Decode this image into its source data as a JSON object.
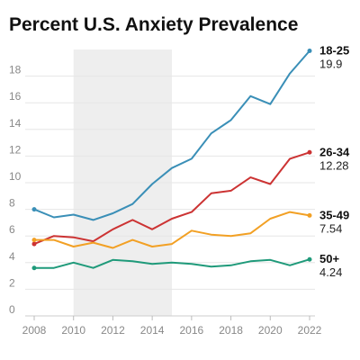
{
  "chart_data": {
    "type": "line",
    "title": "Percent U.S. Anxiety Prevalence",
    "xlabel": "",
    "ylabel": "",
    "xlim": [
      2008,
      2022
    ],
    "ylim": [
      0,
      20
    ],
    "x_ticks": [
      "2008",
      "2010",
      "2012",
      "2014",
      "2016",
      "2018",
      "2020",
      "2022"
    ],
    "y_ticks": [
      "0",
      "2",
      "4",
      "6",
      "8",
      "10",
      "12",
      "14",
      "16",
      "18"
    ],
    "grid": "horizontal",
    "legend": "end-labels-right",
    "shaded_range": [
      2010,
      2015
    ],
    "shade_color": "#eeeeee",
    "x": [
      2008,
      2009,
      2010,
      2011,
      2012,
      2013,
      2014,
      2015,
      2016,
      2017,
      2018,
      2019,
      2020,
      2021,
      2022
    ],
    "series": [
      {
        "name": "18-25",
        "end_label": "19.9",
        "color": "#3a8fb7",
        "values": [
          8.0,
          7.4,
          7.6,
          7.2,
          7.7,
          8.4,
          9.9,
          11.1,
          11.8,
          13.7,
          14.7,
          16.5,
          15.9,
          18.2,
          19.9
        ]
      },
      {
        "name": "26-34",
        "end_label": "12.28",
        "color": "#cc3333",
        "values": [
          5.4,
          6.0,
          5.9,
          5.6,
          6.5,
          7.2,
          6.5,
          7.3,
          7.8,
          9.2,
          9.4,
          10.4,
          9.9,
          11.8,
          12.28
        ]
      },
      {
        "name": "35-49",
        "end_label": "7.54",
        "color": "#f2a024",
        "values": [
          5.7,
          5.7,
          5.2,
          5.5,
          5.1,
          5.7,
          5.2,
          5.4,
          6.4,
          6.1,
          6.0,
          6.2,
          7.3,
          7.8,
          7.54
        ]
      },
      {
        "name": "50+",
        "end_label": "4.24",
        "color": "#1f9a7a",
        "values": [
          3.6,
          3.6,
          4.0,
          3.6,
          4.2,
          4.1,
          3.9,
          4.0,
          3.9,
          3.7,
          3.8,
          4.1,
          4.2,
          3.8,
          4.24
        ]
      }
    ]
  }
}
